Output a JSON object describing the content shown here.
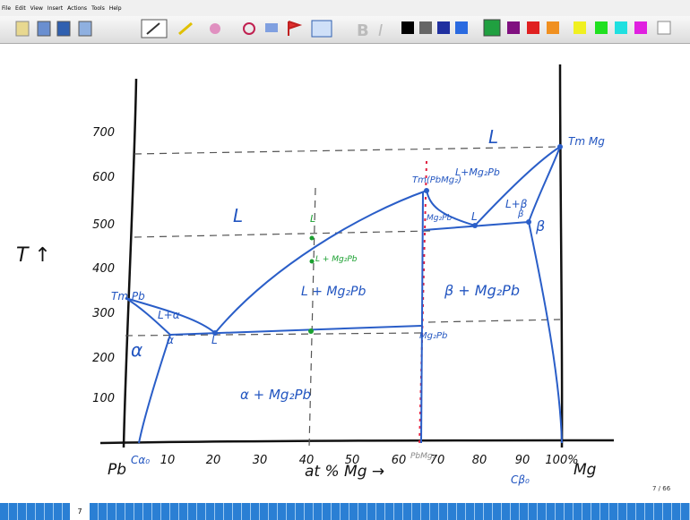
{
  "menu": [
    "File",
    "Edit",
    "View",
    "Insert",
    "Actions",
    "Tools",
    "Help"
  ],
  "diagram": {
    "y_label": "T ↑",
    "y_ticks": [
      "700",
      "600",
      "500",
      "400",
      "300",
      "200",
      "100"
    ],
    "x_ticks": [
      "10",
      "20",
      "30",
      "40",
      "50",
      "60",
      "70",
      "80",
      "90",
      "100%"
    ],
    "x_left": "Pb",
    "x_right": "Mg",
    "x_label": "at % Mg →",
    "labels": [
      "L",
      "L",
      "Tm Pb",
      "L+α",
      "α",
      "α",
      "L",
      "L + Mg₂Pb",
      "α + Mg₂Pb",
      "β + Mg₂Pb",
      "Mg₂Pb",
      "Mg₂Pb",
      "L",
      "L+β",
      "β",
      "β",
      "Tm Mg",
      "Tm(PbMg₂)",
      "L+Mg₂Pb",
      "L",
      "L + Mg₂Pb",
      "Cα₀",
      "Cβ₀",
      "PbMg₂"
    ]
  },
  "status": {
    "page": "7 / 66",
    "tab": "7"
  }
}
